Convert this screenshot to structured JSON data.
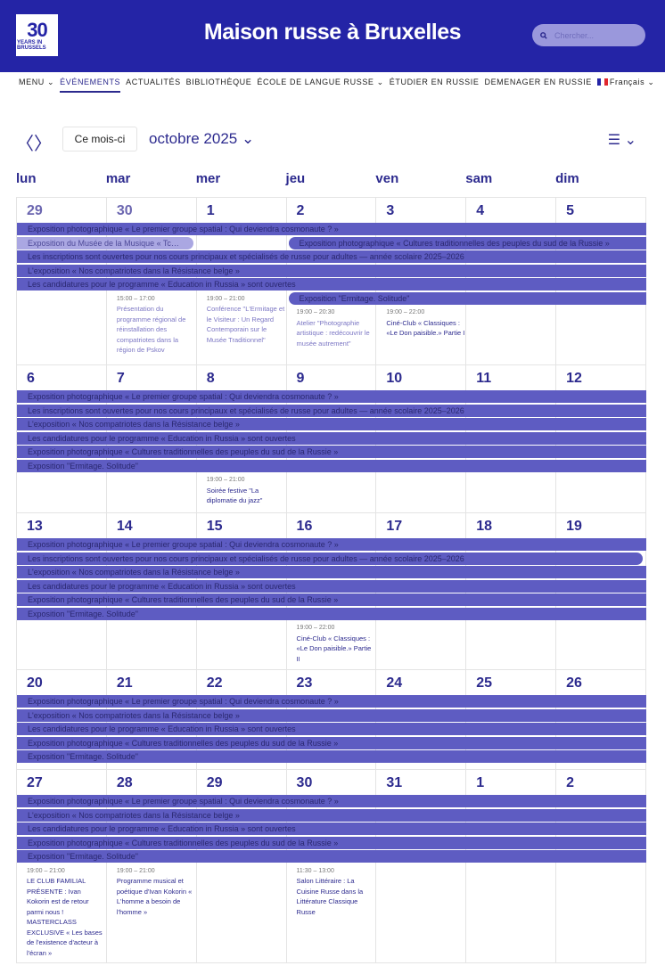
{
  "header": {
    "logo_text": "30 YEARS IN BRUSSELS",
    "logo_number": "30",
    "logo_sub": "YEARS IN BRUSSELS",
    "title": "Maison russe à Bruxelles",
    "search_placeholder": "Chercher...",
    "search_icon": "search-icon",
    "brand_color": "#2424a6"
  },
  "nav": {
    "items": [
      {
        "label": "MENU ⌄"
      },
      {
        "label": "ÉVÉNEMENTS",
        "active": true
      },
      {
        "label": "ACTUALITÉS"
      },
      {
        "label": "BIBLIOTHÈQUE"
      },
      {
        "label": "ÉCOLE DE LANGUE RUSSE ⌄"
      },
      {
        "label": "ÉTUDIER EN RUSSIE"
      },
      {
        "label": "DEMENAGER EN RUSSIE"
      }
    ],
    "language": "Français ⌄"
  },
  "toolbar": {
    "prev": "〈",
    "next": "〉",
    "today": "Ce mois-ci",
    "month": "octobre 2025 ⌄",
    "view": "☰ ⌄"
  },
  "weekdays": [
    "lun",
    "mar",
    "mer",
    "jeu",
    "ven",
    "sam",
    "dim"
  ],
  "colors": {
    "bar": "#5e5cc2",
    "bar_past": "#aaa7e2",
    "day_number": "#2c2a8e"
  },
  "weeks": [
    {
      "days": [
        {
          "n": "29",
          "past": true
        },
        {
          "n": "30",
          "past": true
        },
        {
          "n": "1"
        },
        {
          "n": "2"
        },
        {
          "n": "3"
        },
        {
          "n": "4"
        },
        {
          "n": "5"
        }
      ],
      "lanes": [
        [
          {
            "label": "Exposition photographique « Le premier groupe spatial : Qui deviendra cosmonaute ? »",
            "from": "29",
            "to": "5"
          }
        ],
        [
          {
            "label": "Exposition du Musée de la Musique « Tc…",
            "from": "29",
            "to": "30",
            "past": true,
            "ends": true
          },
          {
            "label": "Exposition photographique « Cultures traditionnelles des peuples du sud de la Russie »",
            "from": "2",
            "to": "5",
            "starts": true
          }
        ],
        [
          {
            "label": "Les inscriptions sont ouvertes pour nos cours principaux et spécialisés de russe pour adultes — année scolaire 2025–2026",
            "from": "29",
            "to": "5"
          }
        ],
        [
          {
            "label": "L'exposition « Nos compatriotes dans la Résistance belge »",
            "from": "29",
            "to": "5"
          }
        ],
        [
          {
            "label": "Les candidatures pour le programme « Education in Russia » sont ouvertes",
            "from": "29",
            "to": "5"
          }
        ],
        [
          {
            "label": "Exposition \"Ermitage. Solitude\"",
            "from": "2",
            "to": "5",
            "starts": true
          }
        ]
      ],
      "events": [
        {
          "day": "30",
          "time": "15:00 – 17:00",
          "title": "Présentation du programme régional de réinstallation des compatriotes dans la région de Pskov",
          "past": true
        },
        {
          "day": "1",
          "time": "19:00 – 21:00",
          "title": "Conférence \"L'Ermitage et le Visiteur : Un Regard Contemporain sur le Musée Traditionnel\"",
          "past": true
        },
        {
          "day": "2",
          "time": "19:00 – 20:30",
          "title": "Atelier \"Photographie artistique : redécouvrir le musée autrement\"",
          "past": true
        },
        {
          "day": "3",
          "time": "19:00 – 22:00",
          "title": "Ciné-Club « Classiques : «Le Don paisible.» Partie I"
        }
      ]
    },
    {
      "days": [
        {
          "n": "6"
        },
        {
          "n": "7"
        },
        {
          "n": "8"
        },
        {
          "n": "9"
        },
        {
          "n": "10"
        },
        {
          "n": "11"
        },
        {
          "n": "12"
        }
      ],
      "lanes": [
        [
          {
            "label": "Exposition photographique « Le premier groupe spatial : Qui deviendra cosmonaute ? »",
            "from": "6",
            "to": "12"
          }
        ],
        [
          {
            "label": "Les inscriptions sont ouvertes pour nos cours principaux et spécialisés de russe pour adultes — année scolaire 2025–2026",
            "from": "6",
            "to": "12"
          }
        ],
        [
          {
            "label": "L'exposition « Nos compatriotes dans la Résistance belge »",
            "from": "6",
            "to": "12"
          }
        ],
        [
          {
            "label": "Les candidatures pour le programme « Education in Russia » sont ouvertes",
            "from": "6",
            "to": "12"
          }
        ],
        [
          {
            "label": "Exposition photographique « Cultures traditionnelles des peuples du sud de la Russie »",
            "from": "6",
            "to": "12"
          }
        ],
        [
          {
            "label": "Exposition \"Ermitage. Solitude\"",
            "from": "6",
            "to": "12"
          }
        ]
      ],
      "events": [
        {
          "day": "8",
          "time": "19:00 – 21:00",
          "title": "Soirée festive \"La diplomatie du jazz\""
        }
      ]
    },
    {
      "days": [
        {
          "n": "13"
        },
        {
          "n": "14"
        },
        {
          "n": "15"
        },
        {
          "n": "16"
        },
        {
          "n": "17"
        },
        {
          "n": "18"
        },
        {
          "n": "19"
        }
      ],
      "lanes": [
        [
          {
            "label": "Exposition photographique « Le premier groupe spatial : Qui deviendra cosmonaute ? »",
            "from": "13",
            "to": "19"
          }
        ],
        [
          {
            "label": "Les inscriptions sont ouvertes pour nos cours principaux et spécialisés de russe pour adultes — année scolaire 2025–2026",
            "from": "13",
            "to": "19",
            "ends": true
          }
        ],
        [
          {
            "label": "L'exposition « Nos compatriotes dans la Résistance belge »",
            "from": "13",
            "to": "19"
          }
        ],
        [
          {
            "label": "Les candidatures pour le programme « Education in Russia » sont ouvertes",
            "from": "13",
            "to": "19"
          }
        ],
        [
          {
            "label": "Exposition photographique « Cultures traditionnelles des peuples du sud de la Russie »",
            "from": "13",
            "to": "19"
          }
        ],
        [
          {
            "label": "Exposition \"Ermitage. Solitude\"",
            "from": "13",
            "to": "19"
          }
        ]
      ],
      "events": [
        {
          "day": "16",
          "time": "19:00 – 22:00",
          "title": "Ciné-Club « Classiques : «Le Don paisible.» Partie II"
        }
      ]
    },
    {
      "days": [
        {
          "n": "20"
        },
        {
          "n": "21"
        },
        {
          "n": "22"
        },
        {
          "n": "23"
        },
        {
          "n": "24"
        },
        {
          "n": "25"
        },
        {
          "n": "26"
        }
      ],
      "lanes": [
        [
          {
            "label": "Exposition photographique « Le premier groupe spatial : Qui deviendra cosmonaute ? »",
            "from": "20",
            "to": "26"
          }
        ],
        [
          {
            "label": "L'exposition « Nos compatriotes dans la Résistance belge »",
            "from": "20",
            "to": "26"
          }
        ],
        [
          {
            "label": "Les candidatures pour le programme « Education in Russia » sont ouvertes",
            "from": "20",
            "to": "26"
          }
        ],
        [
          {
            "label": "Exposition photographique « Cultures traditionnelles des peuples du sud de la Russie »",
            "from": "20",
            "to": "26"
          }
        ],
        [
          {
            "label": "Exposition \"Ermitage. Solitude\"",
            "from": "20",
            "to": "26"
          }
        ]
      ],
      "events": []
    },
    {
      "days": [
        {
          "n": "27"
        },
        {
          "n": "28"
        },
        {
          "n": "29"
        },
        {
          "n": "30"
        },
        {
          "n": "31"
        },
        {
          "n": "1"
        },
        {
          "n": "2"
        }
      ],
      "lanes": [
        [
          {
            "label": "Exposition photographique « Le premier groupe spatial : Qui deviendra cosmonaute ? »",
            "from": "27",
            "to": "2"
          }
        ],
        [
          {
            "label": "L'exposition « Nos compatriotes dans la Résistance belge »",
            "from": "27",
            "to": "2"
          }
        ],
        [
          {
            "label": "Les candidatures pour le programme « Education in Russia » sont ouvertes",
            "from": "27",
            "to": "2"
          }
        ],
        [
          {
            "label": "Exposition photographique « Cultures traditionnelles des peuples du sud de la Russie »",
            "from": "27",
            "to": "2"
          }
        ],
        [
          {
            "label": "Exposition \"Ermitage. Solitude\"",
            "from": "27",
            "to": "2"
          }
        ]
      ],
      "events": [
        {
          "day": "27",
          "time": "19:00 – 21:00",
          "title": "LE CLUB FAMILIAL PRÉSENTE : Ivan Kokorin est de retour parmi nous ! MASTERCLASS EXCLUSIVE « Les bases de l'existence d'acteur à l'écran »"
        },
        {
          "day": "28",
          "time": "19:00 – 21:00",
          "title": "Programme musical et poétique d'Ivan Kokorin « L'homme a besoin de l'homme »"
        },
        {
          "day": "30",
          "time": "11:30 – 13:00",
          "title": "Salon Littéraire : La Cuisine Russe dans la Littérature Classique Russe"
        }
      ]
    }
  ]
}
